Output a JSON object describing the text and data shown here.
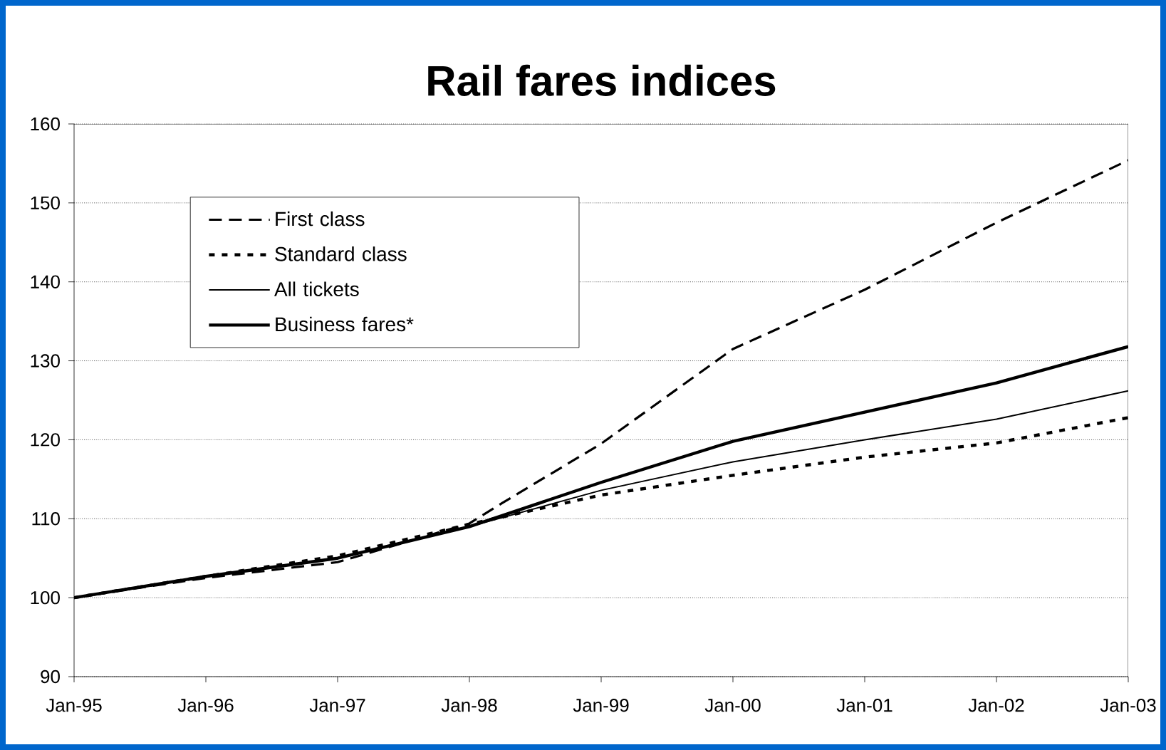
{
  "chart_data": {
    "type": "line",
    "title": "Rail fares indices",
    "x": [
      "1995-01",
      "1996-01",
      "1997-01",
      "1998-01",
      "1999-01",
      "2000-01",
      "2001-01",
      "2002-01",
      "2003-01"
    ],
    "series": [
      {
        "name": "First class",
        "color": "#000000",
        "line_style": "dashed",
        "x": [
          "1995-01",
          "1996-01",
          "1997-01",
          "1998-01",
          "1998-04",
          "1999-01",
          "2000-01",
          "2001-01",
          "2002-01",
          "2003-01"
        ],
        "values": [
          100,
          102.5,
          104.5,
          109.4,
          112,
          119.5,
          131.5,
          139,
          147.5,
          155.4
        ]
      },
      {
        "name": "Standard class",
        "color": "#000000",
        "line_style": "dotted",
        "values": [
          100,
          102.7,
          105.3,
          109.3,
          113,
          115.5,
          117.8,
          119.6,
          122.8
        ]
      },
      {
        "name": "All tickets",
        "color": "#000000",
        "line_style": "solid",
        "values": [
          100,
          102.7,
          105,
          109,
          113.6,
          117.2,
          120,
          122.6,
          126.2
        ]
      },
      {
        "name": "Business fares*",
        "color": "#000000",
        "line_style": "solid",
        "values": [
          100,
          102.7,
          105,
          109,
          114.6,
          119.8,
          123.5,
          127.2,
          131.8
        ]
      }
    ],
    "xlim": [
      "1995-01",
      "2003-01"
    ],
    "xticks": [
      {
        "value": "1995-01",
        "label": "Jan-95"
      },
      {
        "value": "1996-01",
        "label": "Jan-96"
      },
      {
        "value": "1997-01",
        "label": "Jan-97"
      },
      {
        "value": "1998-01",
        "label": "Jan-98"
      },
      {
        "value": "1999-01",
        "label": "Jan-99"
      },
      {
        "value": "2000-01",
        "label": "Jan-00"
      },
      {
        "value": "2001-01",
        "label": "Jan-01"
      },
      {
        "value": "2002-01",
        "label": "Jan-02"
      },
      {
        "value": "2003-01",
        "label": "Jan-03"
      }
    ],
    "ylim": [
      90,
      160
    ],
    "yticks": [
      90,
      100,
      110,
      120,
      130,
      140,
      150,
      160
    ],
    "grid": "y",
    "legend": "top left",
    "marker": "none"
  }
}
